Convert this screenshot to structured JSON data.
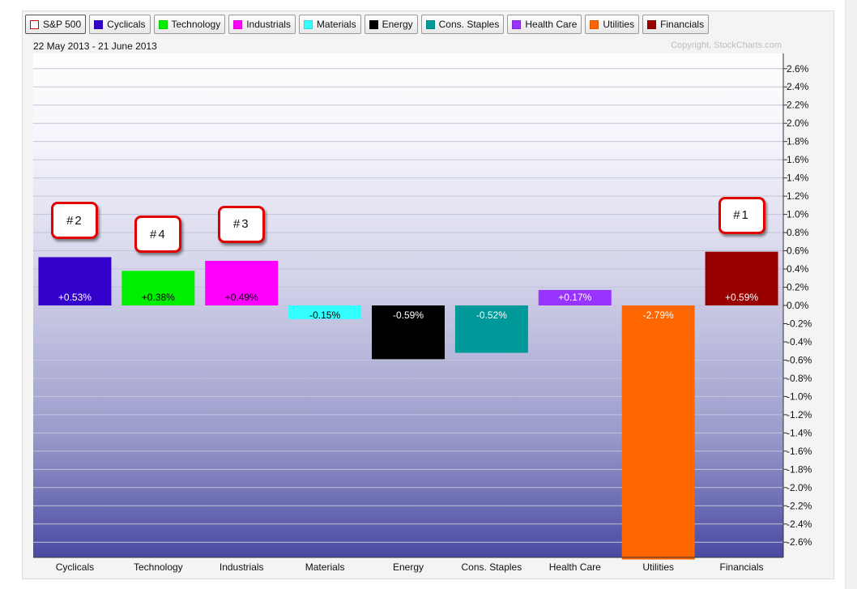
{
  "legend": [
    {
      "label": "S&P 500",
      "color": "#ffffff",
      "hollow": true
    },
    {
      "label": "Cyclicals",
      "color": "#3300cc"
    },
    {
      "label": "Technology",
      "color": "#00ee00"
    },
    {
      "label": "Industrials",
      "color": "#ff00ff"
    },
    {
      "label": "Materials",
      "color": "#33ffff"
    },
    {
      "label": "Energy",
      "color": "#000000"
    },
    {
      "label": "Cons. Staples",
      "color": "#009999"
    },
    {
      "label": "Health Care",
      "color": "#9933ff"
    },
    {
      "label": "Utilities",
      "color": "#ff6600"
    },
    {
      "label": "Financials",
      "color": "#990000"
    }
  ],
  "date_range": "22 May 2013 - 21 June 2013",
  "copyright": "Copyright, StockCharts.com",
  "annotations": [
    {
      "text": "#2",
      "category": "Cyclicals"
    },
    {
      "text": "#4",
      "category": "Technology"
    },
    {
      "text": "#3",
      "category": "Industrials"
    },
    {
      "text": "#1",
      "category": "Financials"
    }
  ],
  "chart_data": {
    "type": "bar",
    "title": "",
    "xlabel": "",
    "ylabel": "",
    "categories": [
      "Cyclicals",
      "Technology",
      "Industrials",
      "Materials",
      "Energy",
      "Cons. Staples",
      "Health Care",
      "Utilities",
      "Financials"
    ],
    "values": [
      0.53,
      0.38,
      0.49,
      -0.15,
      -0.59,
      -0.52,
      0.17,
      -2.79,
      0.59
    ],
    "value_labels": [
      "+0.53%",
      "+0.38%",
      "+0.49%",
      "-0.15%",
      "-0.59%",
      "-0.52%",
      "+0.17%",
      "-2.79%",
      "+0.59%"
    ],
    "colors": [
      "#3300cc",
      "#00ee00",
      "#ff00ff",
      "#33ffff",
      "#000000",
      "#009999",
      "#9933ff",
      "#ff6600",
      "#990000"
    ],
    "label_colors": [
      "#ffffff",
      "#000000",
      "#000000",
      "#000000",
      "#ffffff",
      "#ffffff",
      "#ffffff",
      "#ffffff",
      "#ffffff"
    ],
    "ylim": [
      -2.8,
      2.7
    ],
    "y_ticks": [
      2.6,
      2.4,
      2.2,
      2.0,
      1.8,
      1.6,
      1.4,
      1.2,
      1.0,
      0.8,
      0.6,
      0.4,
      0.2,
      0.0,
      -0.2,
      -0.4,
      -0.6,
      -0.8,
      -1.0,
      -1.2,
      -1.4,
      -1.6,
      -1.8,
      -2.0,
      -2.2,
      -2.4,
      -2.6
    ],
    "y_tick_labels": [
      "2.6%",
      "2.4%",
      "2.2%",
      "2.0%",
      "1.8%",
      "1.6%",
      "1.4%",
      "1.2%",
      "1.0%",
      "0.8%",
      "0.6%",
      "0.4%",
      "0.2%",
      "0.0%",
      "-0.2%",
      "-0.4%",
      "-0.6%",
      "-0.8%",
      "-1.0%",
      "-1.2%",
      "-1.4%",
      "-1.6%",
      "-1.8%",
      "-2.0%",
      "-2.2%",
      "-2.4%",
      "-2.6%"
    ],
    "y_axis_side": "right",
    "grid": true,
    "legend_position": "top"
  }
}
